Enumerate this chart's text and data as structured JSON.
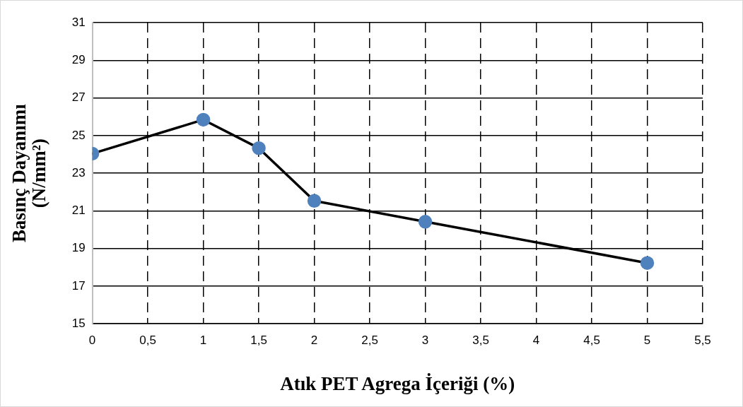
{
  "chart_data": {
    "type": "line",
    "xlabel": "Atık PET Agrega İçeriği (%)",
    "ylabel": "Basınç Dayanımı\n(N/mm²)",
    "x": [
      0,
      1,
      1.5,
      2,
      3,
      5
    ],
    "series": [
      {
        "color": "#000000",
        "values": [
          24.04,
          25.84,
          24.33,
          21.53,
          20.42,
          18.23
        ]
      }
    ],
    "marker": "circle",
    "line_style": "solid",
    "grid": true,
    "xlim": [
      0,
      5.5
    ],
    "xticks": [
      0,
      {
        "value": 0.5,
        "label": "0,5"
      },
      1,
      {
        "value": 1.5,
        "label": "1,5"
      },
      2,
      {
        "value": 2.5,
        "label": "2,5"
      },
      3,
      {
        "value": 3.5,
        "label": "3,5"
      },
      4,
      {
        "value": 4.5,
        "label": "4,5"
      },
      5,
      {
        "value": 5.5,
        "label": "5,5"
      }
    ],
    "ylim": [
      15,
      31
    ],
    "yticks": [
      15,
      17,
      19,
      21,
      23,
      25,
      27,
      29,
      31
    ]
  }
}
